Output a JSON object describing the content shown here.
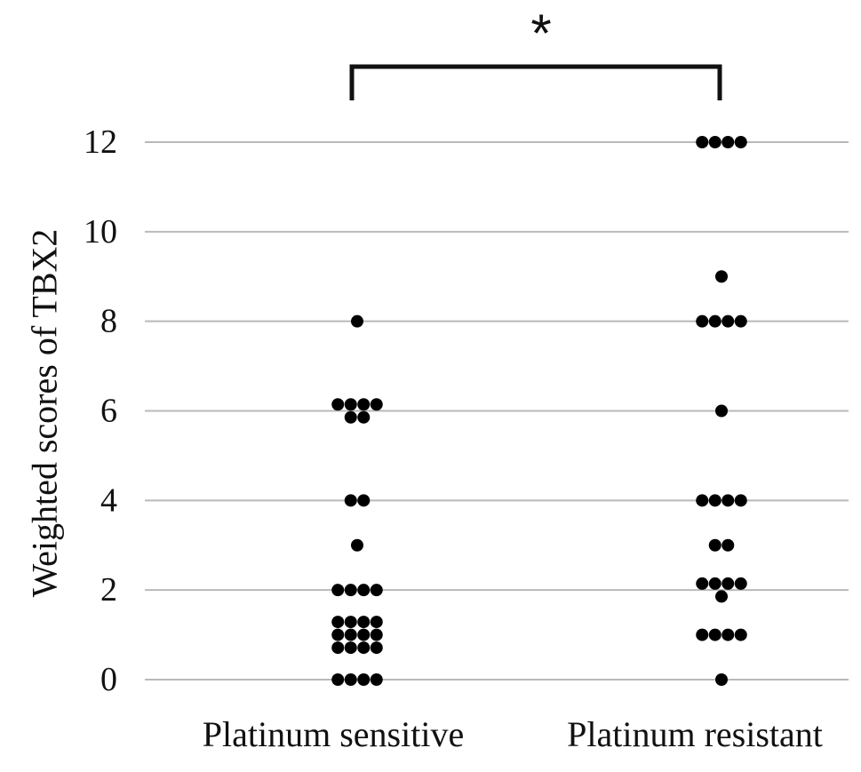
{
  "chart_data": {
    "type": "scatter",
    "ylabel": "Weighted scores of TBX2",
    "xlabel": "",
    "title": "",
    "ylim": [
      0,
      12
    ],
    "yticks": [
      0,
      2,
      4,
      6,
      8,
      10,
      12
    ],
    "grid": true,
    "categories": [
      "Platinum sensitive",
      "Platinum resistant"
    ],
    "series": [
      {
        "category": "Platinum sensitive",
        "values": [
          8,
          6,
          6,
          6,
          6,
          6,
          6,
          4,
          4,
          3,
          2,
          2,
          2,
          2,
          1,
          1,
          1,
          1,
          1,
          1,
          1,
          1,
          1,
          1,
          1,
          1,
          0,
          0,
          0,
          0
        ]
      },
      {
        "category": "Platinum resistant",
        "values": [
          12,
          12,
          12,
          12,
          9,
          8,
          8,
          8,
          8,
          6,
          4,
          4,
          4,
          4,
          3,
          3,
          2,
          2,
          2,
          2,
          2,
          1,
          1,
          1,
          1,
          0
        ]
      }
    ],
    "annotations": [
      {
        "type": "significance-bracket",
        "from": "Platinum sensitive",
        "to": "Platinum resistant",
        "label": "*"
      }
    ]
  }
}
